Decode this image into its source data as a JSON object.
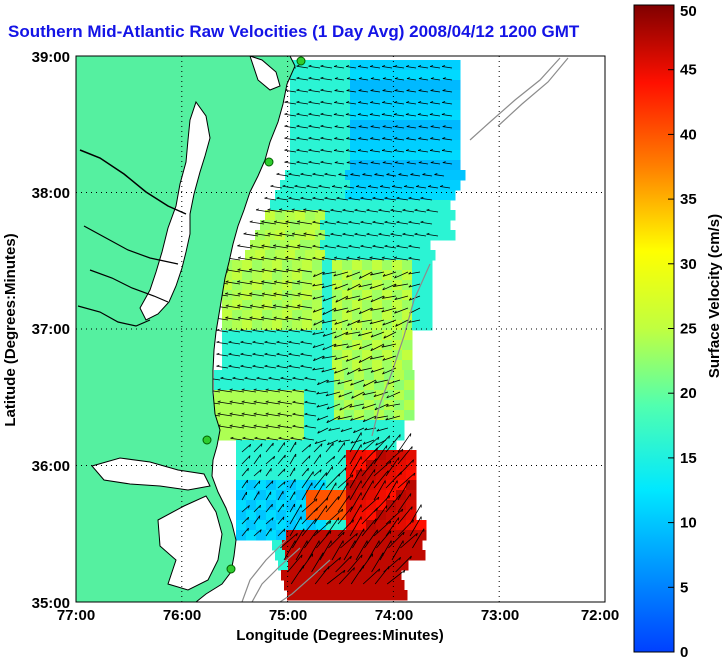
{
  "title": "Southern Mid-Atlantic Raw Velocities (1 Day Avg) 2008/04/12 1200 GMT",
  "map": {
    "xlabel": "Longitude (Degrees:Minutes)",
    "ylabel": "Latitude (Degrees:Minutes)",
    "x_ticks": [
      "77:00",
      "76:00",
      "75:00",
      "74:00",
      "73:00",
      "72:00"
    ],
    "y_ticks": [
      "39:00",
      "38:00",
      "37:00",
      "36:00",
      "35:00"
    ],
    "x_range_deg_west": [
      77,
      72
    ],
    "y_range_deg_north": [
      35,
      39
    ],
    "grid": "dotted",
    "land_color": "#55f0a0",
    "coast_color": "#000000",
    "vector_color": "#000000",
    "bathymetry_color": "#8c8c8c",
    "station_color": "#2ecc2e"
  },
  "colorbar": {
    "label": "Surface Velocity (cm/s)",
    "ticks": [
      "0",
      "5",
      "10",
      "15",
      "20",
      "25",
      "30",
      "35",
      "40",
      "45",
      "50"
    ],
    "range": [
      0,
      50
    ],
    "colormap": "jet"
  }
}
